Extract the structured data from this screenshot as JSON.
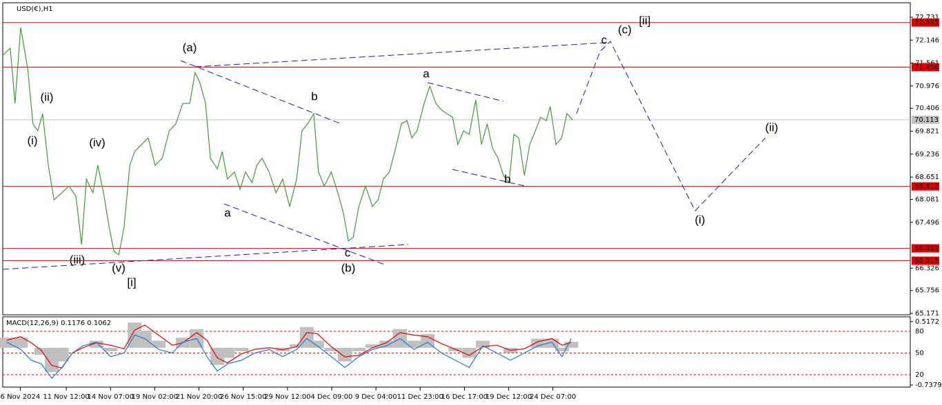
{
  "chart_data": [
    {
      "type": "line",
      "title": "USD(€),H1",
      "xlim": [
        0,
        207.2
      ],
      "xticks": [
        {
          "value": 4,
          "label": "6 Nov 2024"
        },
        {
          "value": 14.5,
          "label": "11 Nov 12:00"
        },
        {
          "value": 24.6,
          "label": "14 Nov 07:00"
        },
        {
          "value": 34.7,
          "label": "19 Nov 02:00"
        },
        {
          "value": 44.8,
          "label": "21 Nov 20:00"
        },
        {
          "value": 54.9,
          "label": "26 Nov 15:00"
        },
        {
          "value": 65,
          "label": "29 Nov 12:00"
        },
        {
          "value": 75.1,
          "label": "4 Dec 09:00"
        },
        {
          "value": 85.2,
          "label": "9 Dec 04:00"
        },
        {
          "value": 95.3,
          "label": "11 Dec 23:00"
        },
        {
          "value": 105.4,
          "label": "16 Dec 17:00"
        },
        {
          "value": 115.5,
          "label": "19 Dec 12:00"
        },
        {
          "value": 125.6,
          "label": "24 Dec 07:00"
        }
      ],
      "ylim": [
        65.136,
        73.1
      ],
      "yticks": [
        72.731,
        72.146,
        71.561,
        70.976,
        70.406,
        69.821,
        69.236,
        68.651,
        68.081,
        67.496,
        66.326,
        65.756,
        65.171
      ],
      "x": [
        0,
        1.7,
        2.8,
        4.1,
        5.7,
        6.9,
        8.0,
        9.1,
        10.4,
        11.7,
        13.5,
        15.1,
        16.7,
        18.0,
        19.1,
        20.6,
        21.7,
        23.0,
        24.3,
        25.4,
        26.5,
        27.7,
        29.0,
        30.1,
        31.7,
        33.2,
        34.8,
        36.4,
        38.0,
        39.5,
        41.1,
        42.7,
        43.9,
        45.0,
        46.3,
        47.4,
        49.0,
        50.1,
        51.3,
        52.9,
        54.2,
        55.4,
        56.9,
        58.0,
        59.2,
        60.8,
        62.4,
        63.9,
        65.5,
        67.1,
        68.3,
        69.6,
        71.0,
        72.1,
        73.4,
        75.0,
        76.5,
        77.8,
        78.9,
        80.0,
        81.3,
        82.8,
        84.4,
        85.7,
        86.9,
        88.3,
        89.9,
        91.0,
        92.3,
        93.4,
        94.6,
        96.2,
        97.5,
        98.9,
        100.2,
        101.4,
        102.7,
        103.9,
        105.2,
        106.5,
        108.0,
        109.3,
        110.6,
        111.8,
        113.1,
        114.3,
        115.6,
        116.7,
        117.8,
        119.1,
        120.3,
        121.6,
        122.8,
        124.1,
        125.0,
        126.3,
        127.6,
        128.8,
        130.1
      ],
      "series": [
        {
          "color": "#3f9a3a",
          "values": [
            71.76,
            71.94,
            70.53,
            72.47,
            71.41,
            70.01,
            69.83,
            70.27,
            68.95,
            68.07,
            68.25,
            68.42,
            68.16,
            66.93,
            68.6,
            68.25,
            68.95,
            68.25,
            67.37,
            66.75,
            66.67,
            67.37,
            68.95,
            69.3,
            69.48,
            69.65,
            68.95,
            69.13,
            69.83,
            70.01,
            70.53,
            70.53,
            71.32,
            71.06,
            70.53,
            69.13,
            68.86,
            69.3,
            68.6,
            68.78,
            68.34,
            68.78,
            68.51,
            68.95,
            69.13,
            68.78,
            68.25,
            68.6,
            67.9,
            68.6,
            69.83,
            70.01,
            70.27,
            68.78,
            68.42,
            68.78,
            68.25,
            67.72,
            67.02,
            67.11,
            67.9,
            68.42,
            67.9,
            68.07,
            68.6,
            68.78,
            69.48,
            70.01,
            70.09,
            69.65,
            69.83,
            70.53,
            70.97,
            70.53,
            70.36,
            70.27,
            70.18,
            69.48,
            69.83,
            69.74,
            70.62,
            69.48,
            70.01,
            69.39,
            69.13,
            68.69,
            68.51,
            69.74,
            69.65,
            68.69,
            69.48,
            69.83,
            70.18,
            70.09,
            70.45,
            69.48,
            69.65,
            70.27,
            70.11
          ]
        }
      ],
      "levels": [
        {
          "value": 72.595,
          "color": "#e00000",
          "text_color": "#ffffff"
        },
        {
          "value": 71.456,
          "color": "#e00000",
          "text_color": "#ffffff"
        },
        {
          "value": 70.113,
          "color": "#c0c0c0",
          "text_color": "#000000"
        },
        {
          "value": 68.412,
          "color": "#e00000",
          "text_color": "#ffffff"
        },
        {
          "value": 66.831,
          "color": "#e00000",
          "text_color": "#ffffff"
        },
        {
          "value": 66.515,
          "color": "#e00000",
          "text_color": "#ffffff"
        }
      ],
      "annotations": [
        {
          "text": "(i)",
          "color": "#1a1aa8"
        },
        {
          "text": "(ii)",
          "color": "#1a1aa8"
        },
        {
          "text": "(iii)",
          "color": "#1a1aa8"
        },
        {
          "text": "(iv)",
          "color": "#1a1aa8"
        },
        {
          "text": "(v)",
          "color": "#1a1aa8"
        },
        {
          "text": "[i]",
          "color": "#3a8a2a"
        },
        {
          "text": "(a)",
          "color": "#1a1aa8"
        },
        {
          "text": "a",
          "color": "#e020d0"
        },
        {
          "text": "b",
          "color": "#e020d0"
        },
        {
          "text": "c",
          "color": "#e020d0"
        },
        {
          "text": "(b)",
          "color": "#1a1aa8"
        },
        {
          "text": "a",
          "color": "#e020d0"
        },
        {
          "text": "b",
          "color": "#e020d0"
        },
        {
          "text": "c",
          "color": "#e020d0"
        },
        {
          "text": "(c)",
          "color": "#1a1aa8"
        },
        {
          "text": "[ii]",
          "color": "#3a8a2a"
        },
        {
          "text": "(i)",
          "color": "#1a1aa8"
        },
        {
          "text": "(ii)",
          "color": "#1a1aa8"
        }
      ]
    },
    {
      "type": "macd",
      "title": "MACD(12,26,9) 0.1176 0.1062",
      "xlim": [
        0,
        207.2
      ],
      "ylim": [
        -0.7788,
        0.6127
      ],
      "yticks": [
        0.5172,
        -0.7379
      ],
      "y2lim": [
        2.86,
        100
      ],
      "y2ticks": [
        80,
        50,
        20
      ],
      "y2_level_color": "#e00000",
      "x": [
        0.9,
        4.1,
        6.5,
        8.8,
        11.2,
        13.5,
        15.9,
        18.3,
        21.4,
        24.6,
        27.7,
        30.1,
        32.4,
        35.6,
        38.7,
        41.1,
        44.3,
        46.6,
        49.0,
        51.3,
        54.5,
        57.6,
        60.8,
        63.9,
        67.1,
        69.4,
        71.8,
        75.0,
        78.1,
        81.3,
        84.4,
        87.6,
        90.7,
        93.9,
        97.0,
        100.2,
        103.3,
        106.5,
        109.6,
        112.8,
        115.9,
        119.1,
        122.2,
        125.4,
        127.7,
        129.8
      ],
      "series": [
        {
          "kind": "histogram",
          "color": "#c0c0c0",
          "values": [
            0.2,
            0.2,
            0,
            -0.14,
            -0.48,
            -0.27,
            0,
            0,
            0.14,
            -0.07,
            0,
            0.5,
            0.34,
            0.14,
            0,
            0.2,
            0.37,
            0,
            -0.34,
            -0.2,
            -0.07,
            0,
            0,
            -0.07,
            0.07,
            0.41,
            0.14,
            -0.07,
            -0.27,
            -0.07,
            0.07,
            0.14,
            0.37,
            0.14,
            0.27,
            0,
            -0.07,
            -0.2,
            0.14,
            0,
            -0.1,
            0,
            0.18,
            0.18,
            -0.07,
            0.1176
          ]
        },
        {
          "kind": "line",
          "color": "#e00000",
          "values": [
            0.15,
            0.22,
            0.1,
            -0.05,
            -0.35,
            -0.4,
            -0.1,
            0,
            0.1,
            0.05,
            -0.02,
            0.35,
            0.45,
            0.25,
            0.05,
            0.1,
            0.3,
            0.15,
            -0.2,
            -0.3,
            -0.12,
            -0.03,
            0,
            -0.04,
            0.02,
            0.3,
            0.28,
            0.02,
            -0.18,
            -0.15,
            0,
            0.1,
            0.3,
            0.25,
            0.22,
            0.08,
            -0.03,
            -0.15,
            0.02,
            0.05,
            -0.05,
            -0.02,
            0.12,
            0.18,
            0.05,
            0.1062
          ]
        },
        {
          "kind": "line",
          "axis": "y2",
          "color": "#1e78d0",
          "values": [
            65,
            55,
            40,
            35,
            15,
            30,
            50,
            60,
            65,
            45,
            50,
            75,
            70,
            55,
            50,
            65,
            70,
            45,
            25,
            35,
            40,
            50,
            55,
            45,
            55,
            70,
            60,
            45,
            30,
            45,
            55,
            60,
            70,
            55,
            65,
            50,
            40,
            30,
            60,
            50,
            40,
            50,
            60,
            65,
            45,
            70
          ]
        }
      ]
    }
  ]
}
